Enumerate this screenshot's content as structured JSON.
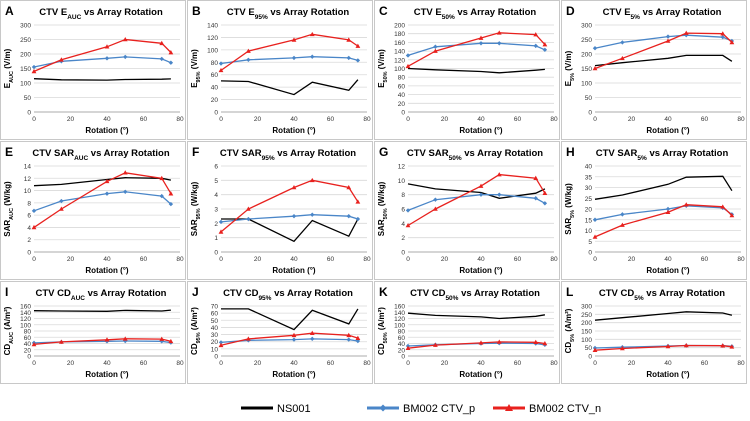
{
  "figure": {
    "legend": [
      {
        "name": "NS001",
        "color": "#000000",
        "marker": "none"
      },
      {
        "name": "BM002 CTV_p",
        "color": "#4a86c8",
        "marker": "diamond"
      },
      {
        "name": "BM002 CTV_n",
        "color": "#e8211e",
        "marker": "triangle"
      }
    ]
  },
  "chart_data": [
    {
      "type": "line",
      "letter": "A",
      "title": {
        "pre": "CTV E",
        "sub": "AUC",
        "post": " vs Array Rotation"
      },
      "xlabel": "Rotation (°)",
      "ylabel": {
        "pre": "E",
        "sub": "AUC",
        "post": " (V/m)"
      },
      "xlim": [
        0,
        80
      ],
      "xticks": [
        "0",
        "20",
        "40",
        "60",
        "80"
      ],
      "ylim": [
        0,
        300
      ],
      "yticks": [
        "0",
        "50",
        "100",
        "150",
        "200",
        "250",
        "300"
      ],
      "series": [
        {
          "name": "NS001",
          "x": [
            0,
            15,
            40,
            50,
            70,
            75
          ],
          "values": [
            115,
            111,
            110,
            112,
            113,
            114
          ]
        },
        {
          "name": "BM002 CTV_p",
          "x": [
            0,
            15,
            40,
            50,
            70,
            75
          ],
          "values": [
            155,
            175,
            185,
            190,
            183,
            170
          ]
        },
        {
          "name": "BM002 CTV_n",
          "x": [
            0,
            15,
            40,
            50,
            70,
            75
          ],
          "values": [
            140,
            180,
            225,
            250,
            237,
            205
          ]
        }
      ]
    },
    {
      "type": "line",
      "letter": "B",
      "title": {
        "pre": "CTV E",
        "sub": "95%",
        "post": " vs Array Rotation"
      },
      "xlabel": "Rotation (°)",
      "ylabel": {
        "pre": "E",
        "sub": "95%",
        "post": " (V/m)"
      },
      "xlim": [
        0,
        80
      ],
      "xticks": [
        "0",
        "20",
        "40",
        "60",
        "80"
      ],
      "ylim": [
        0,
        140
      ],
      "yticks": [
        "0",
        "20",
        "40",
        "60",
        "80",
        "100",
        "120",
        "140"
      ],
      "series": [
        {
          "name": "NS001",
          "x": [
            0,
            15,
            40,
            50,
            70,
            75
          ],
          "values": [
            50,
            49,
            28,
            48,
            35,
            52
          ]
        },
        {
          "name": "BM002 CTV_p",
          "x": [
            0,
            15,
            40,
            50,
            70,
            75
          ],
          "values": [
            78,
            84,
            87,
            89,
            87,
            83
          ]
        },
        {
          "name": "BM002 CTV_n",
          "x": [
            0,
            15,
            40,
            50,
            70,
            75
          ],
          "values": [
            67,
            98,
            116,
            125,
            116,
            106
          ]
        }
      ]
    },
    {
      "type": "line",
      "letter": "C",
      "title": {
        "pre": "CTV E",
        "sub": "50%",
        "post": " vs Array Rotation"
      },
      "xlabel": "Rotation (°)",
      "ylabel": {
        "pre": "E",
        "sub": "50%",
        "post": " (V/m)"
      },
      "xlim": [
        0,
        80
      ],
      "xticks": [
        "0",
        "20",
        "40",
        "60",
        "80"
      ],
      "ylim": [
        0,
        200
      ],
      "yticks": [
        "0",
        "20",
        "40",
        "60",
        "80",
        "100",
        "120",
        "140",
        "160",
        "180",
        "200"
      ],
      "series": [
        {
          "name": "NS001",
          "x": [
            0,
            15,
            40,
            50,
            70,
            75
          ],
          "values": [
            100,
            97,
            93,
            90,
            96,
            98
          ]
        },
        {
          "name": "BM002 CTV_p",
          "x": [
            0,
            15,
            40,
            50,
            70,
            75
          ],
          "values": [
            130,
            150,
            158,
            158,
            152,
            143
          ]
        },
        {
          "name": "BM002 CTV_n",
          "x": [
            0,
            15,
            40,
            50,
            70,
            75
          ],
          "values": [
            105,
            140,
            170,
            182,
            178,
            155
          ]
        }
      ]
    },
    {
      "type": "line",
      "letter": "D",
      "title": {
        "pre": "CTV E",
        "sub": "5%",
        "post": " vs Array Rotation"
      },
      "xlabel": "Rotation (°)",
      "ylabel": {
        "pre": "E",
        "sub": "5%",
        "post": " (V/m)"
      },
      "xlim": [
        0,
        80
      ],
      "xticks": [
        "0",
        "20",
        "40",
        "60",
        "80"
      ],
      "ylim": [
        0,
        300
      ],
      "yticks": [
        "0",
        "50",
        "100",
        "150",
        "200",
        "250",
        "300"
      ],
      "series": [
        {
          "name": "NS001",
          "x": [
            0,
            15,
            40,
            50,
            70,
            75
          ],
          "values": [
            160,
            170,
            185,
            195,
            195,
            175
          ]
        },
        {
          "name": "BM002 CTV_p",
          "x": [
            0,
            15,
            40,
            50,
            70,
            75
          ],
          "values": [
            220,
            240,
            260,
            265,
            258,
            245
          ]
        },
        {
          "name": "BM002 CTV_n",
          "x": [
            0,
            15,
            40,
            50,
            70,
            75
          ],
          "values": [
            150,
            185,
            245,
            272,
            270,
            240
          ]
        }
      ]
    },
    {
      "type": "line",
      "letter": "E",
      "title": {
        "pre": "CTV SAR",
        "sub": "AUC",
        "post": " vs Array Rotation"
      },
      "xlabel": "Rotation (°)",
      "ylabel": {
        "pre": "SAR",
        "sub": "AUC",
        "post": " (W/kg)"
      },
      "xlim": [
        0,
        80
      ],
      "xticks": [
        "0",
        "20",
        "40",
        "60",
        "80"
      ],
      "ylim": [
        0,
        14
      ],
      "yticks": [
        "0",
        "2",
        "4",
        "6",
        "8",
        "10",
        "12",
        "14"
      ],
      "series": [
        {
          "name": "NS001",
          "x": [
            0,
            15,
            40,
            50,
            70,
            75
          ],
          "values": [
            10.8,
            11.0,
            11.8,
            12.1,
            12.0,
            11.7
          ]
        },
        {
          "name": "BM002 CTV_p",
          "x": [
            0,
            15,
            40,
            50,
            70,
            75
          ],
          "values": [
            6.7,
            8.3,
            9.5,
            9.8,
            9.1,
            7.8
          ]
        },
        {
          "name": "BM002 CTV_n",
          "x": [
            0,
            15,
            40,
            50,
            70,
            75
          ],
          "values": [
            4.0,
            7.0,
            11.5,
            12.9,
            12.0,
            9.5
          ]
        }
      ]
    },
    {
      "type": "line",
      "letter": "F",
      "title": {
        "pre": "CTV SAR",
        "sub": "95%",
        "post": " vs Array Rotation"
      },
      "xlabel": "Rotation (°)",
      "ylabel": {
        "pre": "SAR",
        "sub": "95%",
        "post": " (W/kg)"
      },
      "xlim": [
        0,
        80
      ],
      "xticks": [
        "0",
        "20",
        "40",
        "60",
        "80"
      ],
      "ylim": [
        0,
        6
      ],
      "yticks": [
        "0",
        "1",
        "2",
        "3",
        "4",
        "5",
        "6"
      ],
      "series": [
        {
          "name": "NS001",
          "x": [
            0,
            15,
            40,
            50,
            70,
            75
          ],
          "values": [
            2.3,
            2.3,
            0.75,
            2.2,
            1.1,
            2.3
          ]
        },
        {
          "name": "BM002 CTV_p",
          "x": [
            0,
            15,
            40,
            50,
            70,
            75
          ],
          "values": [
            2.1,
            2.3,
            2.5,
            2.6,
            2.5,
            2.3
          ]
        },
        {
          "name": "BM002 CTV_n",
          "x": [
            0,
            15,
            40,
            50,
            70,
            75
          ],
          "values": [
            1.4,
            3.0,
            4.5,
            5.0,
            4.5,
            3.5
          ]
        }
      ]
    },
    {
      "type": "line",
      "letter": "G",
      "title": {
        "pre": "CTV SAR",
        "sub": "50%",
        "post": " vs Array Rotation"
      },
      "xlabel": "Rotation (°)",
      "ylabel": {
        "pre": "SAR",
        "sub": "50%",
        "post": " (W/kg)"
      },
      "xlim": [
        0,
        80
      ],
      "xticks": [
        "0",
        "20",
        "40",
        "60",
        "80"
      ],
      "ylim": [
        0,
        12
      ],
      "yticks": [
        "0",
        "2",
        "4",
        "6",
        "8",
        "10",
        "12"
      ],
      "series": [
        {
          "name": "NS001",
          "x": [
            0,
            15,
            40,
            50,
            70,
            75
          ],
          "values": [
            9.5,
            8.8,
            8.3,
            7.5,
            8.2,
            8.8
          ]
        },
        {
          "name": "BM002 CTV_p",
          "x": [
            0,
            15,
            40,
            50,
            70,
            75
          ],
          "values": [
            5.8,
            7.3,
            8.0,
            8.0,
            7.5,
            6.8
          ]
        },
        {
          "name": "BM002 CTV_n",
          "x": [
            0,
            15,
            40,
            50,
            70,
            75
          ],
          "values": [
            3.7,
            6.0,
            9.2,
            10.8,
            10.3,
            8.2
          ]
        }
      ]
    },
    {
      "type": "line",
      "letter": "H",
      "title": {
        "pre": "CTV SAR",
        "sub": "5%",
        "post": " vs Array Rotation"
      },
      "xlabel": "Rotation (°)",
      "ylabel": {
        "pre": "SAR",
        "sub": "5%",
        "post": " (W/kg)"
      },
      "xlim": [
        0,
        80
      ],
      "xticks": [
        "0",
        "20",
        "40",
        "60",
        "80"
      ],
      "ylim": [
        0,
        40
      ],
      "yticks": [
        "0",
        "5",
        "10",
        "15",
        "20",
        "25",
        "30",
        "35",
        "40"
      ],
      "series": [
        {
          "name": "NS001",
          "x": [
            0,
            15,
            40,
            50,
            70,
            75
          ],
          "values": [
            24.5,
            26.5,
            31.5,
            34.8,
            35.2,
            28.5
          ]
        },
        {
          "name": "BM002 CTV_p",
          "x": [
            0,
            15,
            40,
            50,
            70,
            75
          ],
          "values": [
            15.0,
            17.5,
            20.0,
            21.5,
            20.5,
            17.5
          ]
        },
        {
          "name": "BM002 CTV_n",
          "x": [
            0,
            15,
            40,
            50,
            70,
            75
          ],
          "values": [
            7.0,
            12.5,
            18.5,
            22.0,
            21.0,
            17.0
          ]
        }
      ]
    },
    {
      "type": "line",
      "letter": "I",
      "title": {
        "pre": "CTV CD",
        "sub": "AUC",
        "post": " vs Array Rotation"
      },
      "xlabel": "Rotation (°)",
      "ylabel": {
        "pre": "CD",
        "sub": "AUC",
        "post": " (A/m²)"
      },
      "xlim": [
        0,
        80
      ],
      "xticks": [
        "0",
        "20",
        "40",
        "60",
        "80"
      ],
      "ylim": [
        0,
        160
      ],
      "yticks": [
        "0",
        "20",
        "40",
        "60",
        "80",
        "100",
        "120",
        "140",
        "160"
      ],
      "series": [
        {
          "name": "NS001",
          "x": [
            0,
            15,
            40,
            50,
            70,
            75
          ],
          "values": [
            145,
            144,
            143,
            146,
            144,
            147
          ]
        },
        {
          "name": "BM002 CTV_p",
          "x": [
            0,
            15,
            40,
            50,
            70,
            75
          ],
          "values": [
            42,
            45,
            47,
            48,
            47,
            43
          ]
        },
        {
          "name": "BM002 CTV_n",
          "x": [
            0,
            15,
            40,
            50,
            70,
            75
          ],
          "values": [
            37,
            45,
            52,
            55,
            54,
            47
          ]
        }
      ]
    },
    {
      "type": "line",
      "letter": "J",
      "title": {
        "pre": "CTV CD",
        "sub": "95%",
        "post": " vs Array Rotation"
      },
      "xlabel": "Rotation (°)",
      "ylabel": {
        "pre": "CD",
        "sub": "95%",
        "post": " (A/m²)"
      },
      "xlim": [
        0,
        80
      ],
      "xticks": [
        "0",
        "20",
        "40",
        "60",
        "80"
      ],
      "ylim": [
        0,
        70
      ],
      "yticks": [
        "0",
        "10",
        "20",
        "30",
        "40",
        "50",
        "60",
        "70"
      ],
      "series": [
        {
          "name": "NS001",
          "x": [
            0,
            15,
            40,
            50,
            70,
            75
          ],
          "values": [
            66,
            66,
            37,
            64,
            45,
            66
          ]
        },
        {
          "name": "BM002 CTV_p",
          "x": [
            0,
            15,
            40,
            50,
            70,
            75
          ],
          "values": [
            19,
            22,
            23,
            24,
            23,
            21
          ]
        },
        {
          "name": "BM002 CTV_n",
          "x": [
            0,
            15,
            40,
            50,
            70,
            75
          ],
          "values": [
            15,
            24,
            29,
            32,
            29,
            25
          ]
        }
      ]
    },
    {
      "type": "line",
      "letter": "K",
      "title": {
        "pre": "CTV CD",
        "sub": "50%",
        "post": " vs Array Rotation"
      },
      "xlabel": "Rotation (°)",
      "ylabel": {
        "pre": "CD",
        "sub": "50%",
        "post": " (A/m²)"
      },
      "xlim": [
        0,
        80
      ],
      "xticks": [
        "0",
        "20",
        "40",
        "60",
        "80"
      ],
      "ylim": [
        0,
        160
      ],
      "yticks": [
        "0",
        "20",
        "40",
        "60",
        "80",
        "100",
        "120",
        "140",
        "160"
      ],
      "series": [
        {
          "name": "NS001",
          "x": [
            0,
            15,
            40,
            50,
            70,
            75
          ],
          "values": [
            137,
            130,
            125,
            120,
            127,
            132
          ]
        },
        {
          "name": "BM002 CTV_p",
          "x": [
            0,
            15,
            40,
            50,
            70,
            75
          ],
          "values": [
            32,
            36,
            40,
            41,
            40,
            36
          ]
        },
        {
          "name": "BM002 CTV_n",
          "x": [
            0,
            15,
            40,
            50,
            70,
            75
          ],
          "values": [
            25,
            35,
            42,
            45,
            44,
            40
          ]
        }
      ]
    },
    {
      "type": "line",
      "letter": "L",
      "title": {
        "pre": "CTV CD",
        "sub": "5%",
        "post": " vs Array Rotation"
      },
      "xlabel": "Rotation (°)",
      "ylabel": {
        "pre": "CD",
        "sub": "5%",
        "post": " (A/m²)"
      },
      "xlim": [
        0,
        80
      ],
      "xticks": [
        "0",
        "20",
        "40",
        "60",
        "80"
      ],
      "ylim": [
        0,
        300
      ],
      "yticks": [
        "0",
        "50",
        "100",
        "150",
        "200",
        "250",
        "300"
      ],
      "series": [
        {
          "name": "NS001",
          "x": [
            0,
            15,
            40,
            50,
            70,
            75
          ],
          "values": [
            215,
            230,
            255,
            265,
            258,
            245
          ]
        },
        {
          "name": "BM002 CTV_p",
          "x": [
            0,
            15,
            40,
            50,
            70,
            75
          ],
          "values": [
            48,
            53,
            60,
            63,
            62,
            58
          ]
        },
        {
          "name": "BM002 CTV_n",
          "x": [
            0,
            15,
            40,
            50,
            70,
            75
          ],
          "values": [
            35,
            45,
            57,
            63,
            62,
            55
          ]
        }
      ]
    }
  ]
}
